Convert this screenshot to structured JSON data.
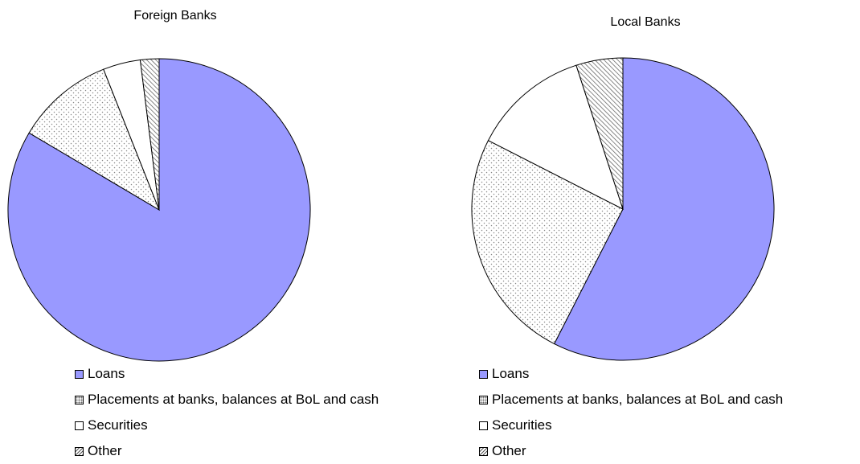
{
  "chart_data": [
    {
      "type": "pie",
      "title": "Foreign Banks",
      "categories": [
        "Loans",
        "Placements at banks, balances at BoL and cash",
        "Securities",
        "Other"
      ],
      "values": [
        83.5,
        10.5,
        4.0,
        2.0
      ],
      "legend_position": "bottom"
    },
    {
      "type": "pie",
      "title": "Local Banks",
      "categories": [
        "Loans",
        "Placements at banks, balances at BoL and cash",
        "Securities",
        "Other"
      ],
      "values": [
        57.5,
        25.0,
        12.5,
        5.0
      ],
      "legend_position": "bottom"
    }
  ],
  "styles": {
    "loans_color": "#9999ff",
    "border_color": "#000000",
    "slice_patterns": [
      "solid",
      "dots",
      "none",
      "diagonal-hatch"
    ]
  }
}
